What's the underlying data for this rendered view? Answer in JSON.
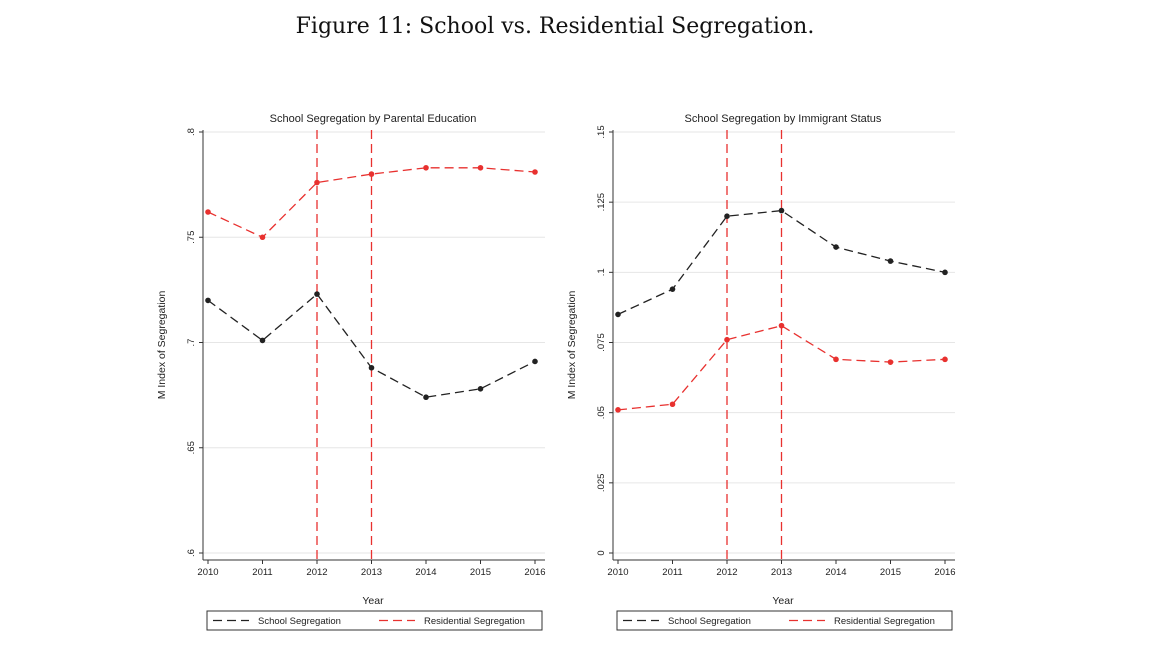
{
  "figure_title": "Figure 11: School vs. Residential Segregation.",
  "colors": {
    "school": "#222222",
    "residential": "#e8312f",
    "grid": "#e6e6e6",
    "axis": "#333333"
  },
  "chart_data": [
    {
      "type": "line",
      "title": "School Segregation by Parental Education",
      "xlabel": "Year",
      "ylabel": "M Index of Segregation",
      "x": [
        2010,
        2011,
        2012,
        2013,
        2014,
        2015,
        2016
      ],
      "xticks": [
        "2010",
        "2011",
        "2012",
        "2013",
        "2014",
        "2015",
        "2016"
      ],
      "xlim": [
        2010,
        2016
      ],
      "ylim": [
        0.6,
        0.8
      ],
      "yticks": [
        0.6,
        0.65,
        0.7,
        0.75,
        0.8
      ],
      "ytick_labels": [
        ".6",
        ".65",
        ".7",
        ".75",
        ".8"
      ],
      "vlines": [
        2012,
        2013
      ],
      "series": [
        {
          "name": "School Segregation",
          "values": [
            0.72,
            0.701,
            0.723,
            0.688,
            0.674,
            0.678,
            0.691
          ]
        },
        {
          "name": "Residential Segregation",
          "values": [
            0.762,
            0.75,
            0.776,
            0.78,
            0.783,
            0.783,
            0.781
          ]
        }
      ],
      "legend": [
        "School Segregation",
        "Residential Segregation"
      ],
      "legend_position": "bottom"
    },
    {
      "type": "line",
      "title": "School Segregation by Immigrant Status",
      "xlabel": "Year",
      "ylabel": "M Index of Segregation",
      "x": [
        2010,
        2011,
        2012,
        2013,
        2014,
        2015,
        2016
      ],
      "xticks": [
        "2010",
        "2011",
        "2012",
        "2013",
        "2014",
        "2015",
        "2016"
      ],
      "xlim": [
        2010,
        2016
      ],
      "ylim": [
        0,
        0.15
      ],
      "yticks": [
        0,
        0.025,
        0.05,
        0.075,
        0.1,
        0.125,
        0.15
      ],
      "ytick_labels": [
        "0",
        ".025",
        ".05",
        ".075",
        ".1",
        ".125",
        ".15"
      ],
      "vlines": [
        2012,
        2013
      ],
      "series": [
        {
          "name": "School Segregation",
          "values": [
            0.085,
            0.094,
            0.12,
            0.122,
            0.109,
            0.104,
            0.1
          ]
        },
        {
          "name": "Residential Segregation",
          "values": [
            0.051,
            0.053,
            0.076,
            0.081,
            0.069,
            0.068,
            0.069
          ]
        }
      ],
      "legend": [
        "School Segregation",
        "Residential Segregation"
      ],
      "legend_position": "bottom"
    }
  ]
}
